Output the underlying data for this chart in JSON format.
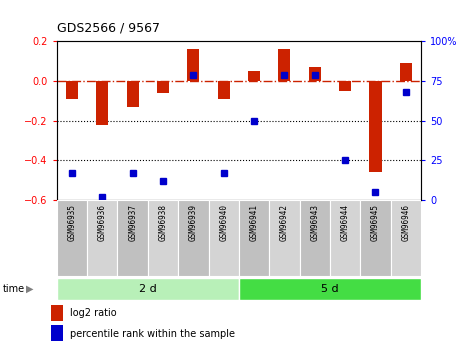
{
  "title": "GDS2566 / 9567",
  "samples": [
    "GSM96935",
    "GSM96936",
    "GSM96937",
    "GSM96938",
    "GSM96939",
    "GSM96940",
    "GSM96941",
    "GSM96942",
    "GSM96943",
    "GSM96944",
    "GSM96945",
    "GSM96946"
  ],
  "log2_ratio": [
    -0.09,
    -0.22,
    -0.13,
    -0.06,
    0.16,
    -0.09,
    0.05,
    0.16,
    0.07,
    -0.05,
    -0.46,
    0.09
  ],
  "percentile_rank": [
    17,
    2,
    17,
    12,
    79,
    17,
    50,
    79,
    79,
    25,
    5,
    68
  ],
  "groups": [
    {
      "label": "2 d",
      "start": 0,
      "end": 6,
      "color": "#b8f0b8"
    },
    {
      "label": "5 d",
      "start": 6,
      "end": 12,
      "color": "#44dd44"
    }
  ],
  "ylim_left": [
    -0.6,
    0.2
  ],
  "ylim_right": [
    0,
    100
  ],
  "bar_color": "#cc2200",
  "dot_color": "#0000cc",
  "hline_color": "#cc2200",
  "dotted_line_color": "#000000",
  "plot_bg": "#ffffff",
  "legend_bar": "log2 ratio",
  "legend_dot": "percentile rank within the sample",
  "sample_box_colors": [
    "#c0c0c0",
    "#d4d4d4"
  ]
}
